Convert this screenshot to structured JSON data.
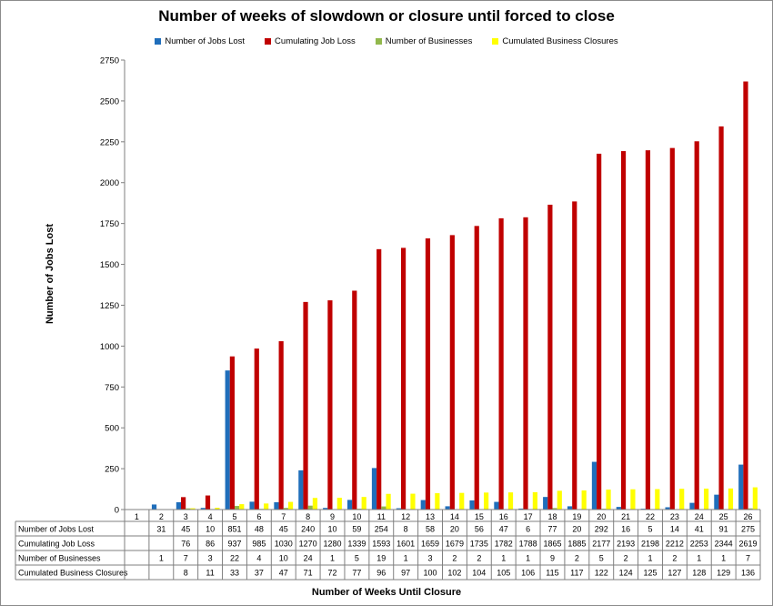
{
  "chart_data": {
    "type": "bar",
    "title": "Number of weeks of slowdown or closure until forced to close",
    "xlabel": "Number of Weeks Until Closure",
    "ylabel": "Number of Jobs Lost",
    "ylim": [
      0,
      2750
    ],
    "yticks": [
      0,
      250,
      500,
      750,
      1000,
      1250,
      1500,
      1750,
      2000,
      2250,
      2500,
      2750
    ],
    "grid": false,
    "legend_position": "top",
    "categories": [
      "1",
      "2",
      "3",
      "4",
      "5",
      "6",
      "7",
      "8",
      "9",
      "10",
      "11",
      "12",
      "13",
      "14",
      "15",
      "16",
      "17",
      "18",
      "19",
      "20",
      "21",
      "22",
      "23",
      "24",
      "25",
      "26"
    ],
    "series": [
      {
        "name": "Number of Jobs Lost",
        "color": "#1f6ebb",
        "values": [
          null,
          31,
          45,
          10,
          851,
          48,
          45,
          240,
          10,
          59,
          254,
          8,
          58,
          20,
          56,
          47,
          6,
          77,
          20,
          292,
          16,
          5,
          14,
          41,
          91,
          275
        ]
      },
      {
        "name": "Cumulating Job Loss",
        "color": "#c00000",
        "values": [
          null,
          null,
          76,
          86,
          937,
          985,
          1030,
          1270,
          1280,
          1339,
          1593,
          1601,
          1659,
          1679,
          1735,
          1782,
          1788,
          1865,
          1885,
          2177,
          2193,
          2198,
          2212,
          2253,
          2344,
          2619
        ]
      },
      {
        "name": "Number of Businesses",
        "color": "#92b84c",
        "values": [
          null,
          1,
          7,
          3,
          22,
          4,
          10,
          24,
          1,
          5,
          19,
          1,
          3,
          2,
          2,
          1,
          1,
          9,
          2,
          5,
          2,
          1,
          2,
          1,
          1,
          7
        ]
      },
      {
        "name": "Cumulated Business Closures",
        "color": "#ffff00",
        "values": [
          null,
          null,
          8,
          11,
          33,
          37,
          47,
          71,
          72,
          77,
          96,
          97,
          100,
          102,
          104,
          105,
          106,
          115,
          117,
          122,
          124,
          125,
          127,
          128,
          129,
          136
        ]
      }
    ]
  }
}
